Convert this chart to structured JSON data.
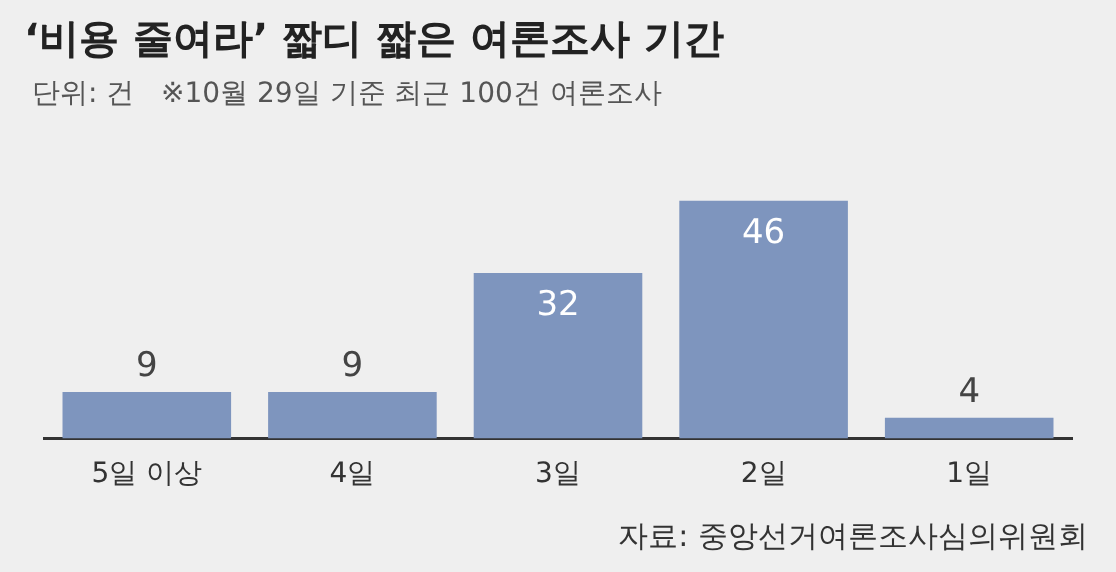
{
  "chart_data": {
    "type": "bar",
    "title": "‘비용 줄여라’ 짧디 짧은 여론조사 기간",
    "subtitle": "단위: 건   ※10월 29일 기준 최근 100건 여론조사",
    "categories": [
      "5일 이상",
      "4일",
      "3일",
      "2일",
      "1일"
    ],
    "values": [
      9,
      9,
      32,
      46,
      4
    ],
    "color": "#7e95be",
    "data_labels": true,
    "grid": false,
    "legend": false,
    "annotations": [
      "자료: 중앙선거여론조사심의위원회"
    ]
  }
}
